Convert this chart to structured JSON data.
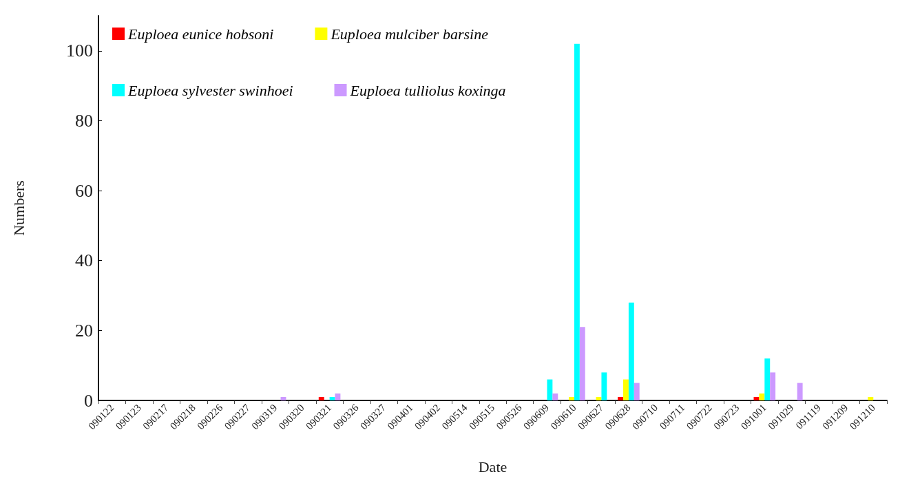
{
  "chart_data": {
    "type": "bar",
    "xlabel": "Date",
    "ylabel": "Numbers",
    "categories": [
      "090122",
      "090123",
      "090217",
      "090218",
      "090226",
      "090227",
      "090319",
      "090320",
      "090321",
      "090326",
      "090327",
      "090401",
      "090402",
      "090514",
      "090515",
      "090526",
      "090609",
      "090610",
      "090627",
      "090628",
      "090710",
      "090711",
      "090722",
      "090723",
      "091001",
      "091029",
      "091119",
      "091209",
      "091210"
    ],
    "series": [
      {
        "name": "Euploea eunice hobsoni",
        "color": "#ff0000",
        "values": [
          0,
          0,
          0,
          0,
          0,
          0,
          0,
          0,
          1,
          0,
          0,
          0,
          0,
          0,
          0,
          0,
          0,
          0,
          0,
          1,
          0,
          0,
          0,
          0,
          1,
          0,
          0,
          0,
          0
        ]
      },
      {
        "name": "Euploea mulciber barsine",
        "color": "#ffff00",
        "values": [
          0,
          0,
          0,
          0,
          0,
          0,
          0,
          0,
          0,
          0,
          0,
          0,
          0,
          0,
          0,
          0,
          0,
          1,
          1,
          6,
          0,
          0,
          0,
          0,
          2,
          0,
          0,
          0,
          1
        ]
      },
      {
        "name": "Euploea sylvester swinhoei",
        "color": "#00ffff",
        "values": [
          0,
          0,
          0,
          0,
          0,
          0,
          0,
          0,
          1,
          0,
          0,
          0,
          0,
          0,
          0,
          0,
          6,
          102,
          8,
          28,
          0,
          0,
          0,
          0,
          12,
          0,
          0,
          0,
          0
        ]
      },
      {
        "name": "Euploea tulliolus koxinga",
        "color": "#cc99ff",
        "values": [
          0,
          0,
          0,
          0,
          0,
          0,
          1,
          0,
          2,
          0,
          0,
          0,
          0,
          0,
          0,
          0,
          2,
          21,
          0,
          5,
          0,
          0,
          0,
          0,
          8,
          5,
          0,
          0,
          0
        ]
      }
    ],
    "ylim": [
      0,
      110
    ],
    "yticks": [
      0,
      20,
      40,
      60,
      80,
      100
    ],
    "grid": false,
    "legend": "top left"
  }
}
